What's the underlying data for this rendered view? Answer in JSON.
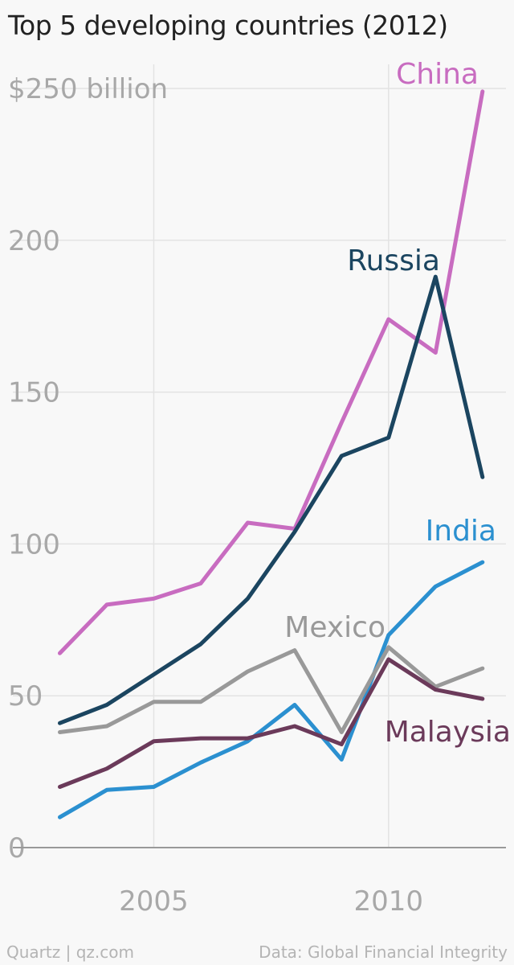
{
  "chart_data": {
    "type": "line",
    "title": "Top 5 developing countries (2012)",
    "y_unit_label": "$250 billion",
    "ylim": [
      0,
      250
    ],
    "y_ticks": [
      {
        "value": 250,
        "label": "$250 billion"
      },
      {
        "value": 200,
        "label": "200"
      },
      {
        "value": 150,
        "label": "150"
      },
      {
        "value": 100,
        "label": "100"
      },
      {
        "value": 50,
        "label": "50"
      },
      {
        "value": 0,
        "label": "0"
      }
    ],
    "x_ticks": [
      {
        "value": 2005,
        "label": "2005"
      },
      {
        "value": 2010,
        "label": "2010"
      }
    ],
    "xlim": [
      2002,
      2012.5
    ],
    "grid": true,
    "x": [
      2003,
      2004,
      2005,
      2006,
      2007,
      2008,
      2009,
      2010,
      2011,
      2012
    ],
    "series": [
      {
        "name": "China",
        "color": "#c86cc0",
        "values": [
          64,
          80,
          82,
          87,
          107,
          105,
          140,
          174,
          163,
          249
        ]
      },
      {
        "name": "Russia",
        "color": "#1b4560",
        "values": [
          41,
          47,
          57,
          67,
          82,
          104,
          129,
          135,
          188,
          122
        ]
      },
      {
        "name": "India",
        "color": "#2b90d0",
        "values": [
          10,
          19,
          20,
          28,
          35,
          47,
          29,
          70,
          86,
          94
        ]
      },
      {
        "name": "Mexico",
        "color": "#999999",
        "values": [
          38,
          40,
          48,
          48,
          58,
          65,
          38,
          66,
          53,
          59
        ]
      },
      {
        "name": "Malaysia",
        "color": "#6b3a5a",
        "values": [
          20,
          26,
          35,
          36,
          36,
          40,
          34,
          62,
          52,
          49
        ]
      }
    ]
  },
  "footer": {
    "source_left": "Quartz | qz.com",
    "source_right": "Data: Global Financial Integrity"
  }
}
